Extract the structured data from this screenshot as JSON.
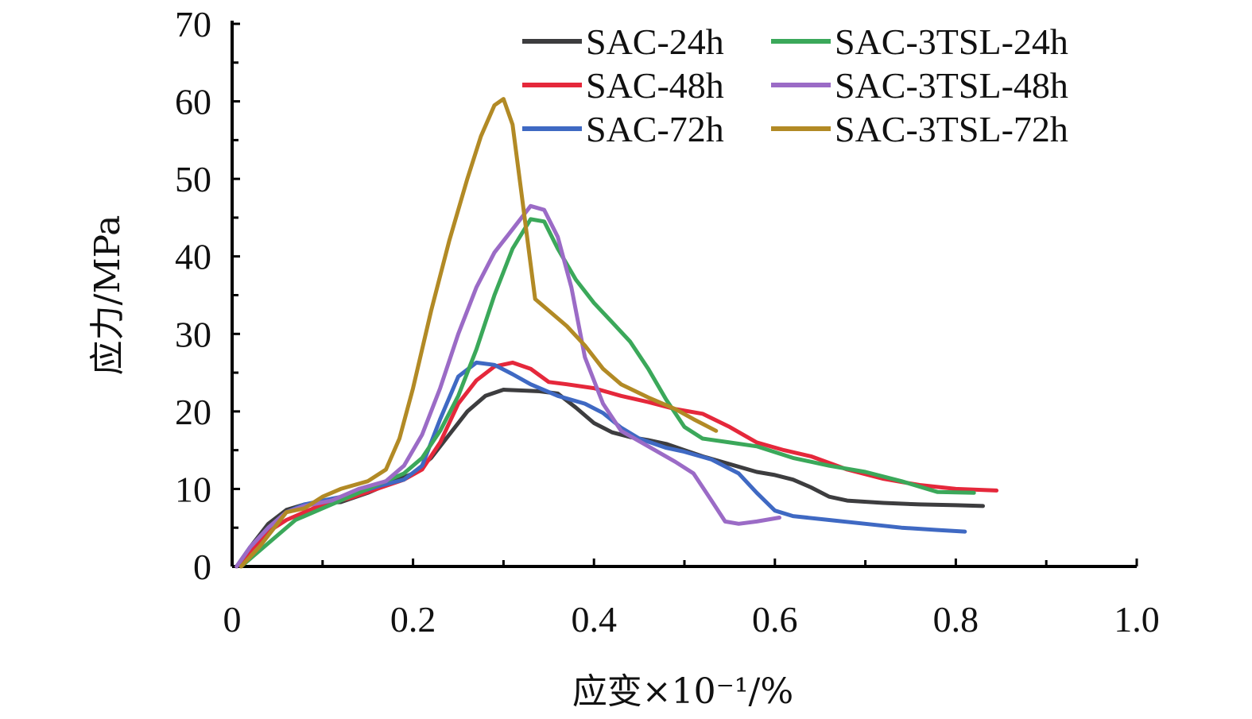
{
  "chart_data": {
    "type": "line",
    "title": "",
    "xlabel": "应变×10⁻¹/%",
    "ylabel": "应力/MPa",
    "xlim": [
      0,
      1.0
    ],
    "ylim": [
      0,
      70
    ],
    "x_ticks": [
      "0",
      "0.2",
      "0.4",
      "0.6",
      "0.8",
      "1.0"
    ],
    "y_ticks": [
      "0",
      "10",
      "20",
      "30",
      "40",
      "50",
      "60",
      "70"
    ],
    "grid": false,
    "legend_position": "top-right",
    "series": [
      {
        "name": "SAC-24h",
        "color": "#3d3d3f",
        "points": [
          [
            0.005,
            0
          ],
          [
            0.02,
            2.5
          ],
          [
            0.04,
            5.5
          ],
          [
            0.06,
            7.3
          ],
          [
            0.08,
            8.0
          ],
          [
            0.1,
            8.2
          ],
          [
            0.12,
            8.3
          ],
          [
            0.15,
            9.5
          ],
          [
            0.18,
            11.0
          ],
          [
            0.2,
            12.0
          ],
          [
            0.22,
            14.0
          ],
          [
            0.24,
            17.0
          ],
          [
            0.26,
            20.0
          ],
          [
            0.28,
            22.0
          ],
          [
            0.3,
            22.8
          ],
          [
            0.32,
            22.7
          ],
          [
            0.34,
            22.6
          ],
          [
            0.36,
            22.3
          ],
          [
            0.38,
            20.5
          ],
          [
            0.4,
            18.5
          ],
          [
            0.42,
            17.3
          ],
          [
            0.44,
            16.7
          ],
          [
            0.46,
            16.3
          ],
          [
            0.48,
            15.8
          ],
          [
            0.5,
            15.0
          ],
          [
            0.52,
            14.2
          ],
          [
            0.55,
            13.2
          ],
          [
            0.58,
            12.2
          ],
          [
            0.6,
            11.8
          ],
          [
            0.62,
            11.2
          ],
          [
            0.64,
            10.2
          ],
          [
            0.66,
            9.0
          ],
          [
            0.68,
            8.5
          ],
          [
            0.72,
            8.2
          ],
          [
            0.76,
            8.0
          ],
          [
            0.8,
            7.9
          ],
          [
            0.83,
            7.8
          ]
        ]
      },
      {
        "name": "SAC-48h",
        "color": "#e5283b",
        "points": [
          [
            0.005,
            0
          ],
          [
            0.02,
            2.0
          ],
          [
            0.04,
            4.5
          ],
          [
            0.06,
            6.0
          ],
          [
            0.08,
            7.0
          ],
          [
            0.1,
            8.0
          ],
          [
            0.13,
            8.8
          ],
          [
            0.16,
            10.0
          ],
          [
            0.19,
            11.2
          ],
          [
            0.21,
            12.5
          ],
          [
            0.23,
            16.0
          ],
          [
            0.25,
            21.0
          ],
          [
            0.27,
            24.0
          ],
          [
            0.29,
            25.8
          ],
          [
            0.31,
            26.3
          ],
          [
            0.33,
            25.5
          ],
          [
            0.35,
            23.8
          ],
          [
            0.37,
            23.5
          ],
          [
            0.4,
            23.0
          ],
          [
            0.43,
            22.0
          ],
          [
            0.46,
            21.2
          ],
          [
            0.49,
            20.3
          ],
          [
            0.52,
            19.7
          ],
          [
            0.55,
            18.0
          ],
          [
            0.58,
            16.0
          ],
          [
            0.61,
            15.0
          ],
          [
            0.64,
            14.2
          ],
          [
            0.68,
            12.5
          ],
          [
            0.72,
            11.3
          ],
          [
            0.76,
            10.5
          ],
          [
            0.8,
            10.0
          ],
          [
            0.845,
            9.8
          ]
        ]
      },
      {
        "name": "SAC-72h",
        "color": "#3f69c3",
        "points": [
          [
            0.005,
            0
          ],
          [
            0.02,
            2.5
          ],
          [
            0.04,
            5.0
          ],
          [
            0.06,
            7.0
          ],
          [
            0.08,
            8.0
          ],
          [
            0.1,
            8.5
          ],
          [
            0.13,
            9.2
          ],
          [
            0.16,
            10.3
          ],
          [
            0.19,
            11.2
          ],
          [
            0.21,
            13.0
          ],
          [
            0.23,
            19.0
          ],
          [
            0.25,
            24.5
          ],
          [
            0.27,
            26.3
          ],
          [
            0.29,
            26.0
          ],
          [
            0.31,
            24.8
          ],
          [
            0.33,
            23.5
          ],
          [
            0.36,
            22.0
          ],
          [
            0.39,
            21.0
          ],
          [
            0.41,
            19.8
          ],
          [
            0.43,
            17.9
          ],
          [
            0.45,
            16.5
          ],
          [
            0.48,
            15.3
          ],
          [
            0.5,
            14.8
          ],
          [
            0.53,
            13.8
          ],
          [
            0.56,
            12.0
          ],
          [
            0.58,
            9.5
          ],
          [
            0.6,
            7.2
          ],
          [
            0.62,
            6.5
          ],
          [
            0.66,
            6.0
          ],
          [
            0.7,
            5.5
          ],
          [
            0.74,
            5.0
          ],
          [
            0.78,
            4.7
          ],
          [
            0.81,
            4.5
          ]
        ]
      },
      {
        "name": "SAC-3TSL-24h",
        "color": "#3ba85a",
        "points": [
          [
            0.01,
            0
          ],
          [
            0.03,
            2.0
          ],
          [
            0.05,
            4.0
          ],
          [
            0.07,
            6.0
          ],
          [
            0.1,
            7.5
          ],
          [
            0.13,
            9.0
          ],
          [
            0.16,
            10.5
          ],
          [
            0.19,
            12.0
          ],
          [
            0.21,
            14.0
          ],
          [
            0.23,
            17.5
          ],
          [
            0.25,
            22.0
          ],
          [
            0.27,
            28.0
          ],
          [
            0.29,
            35.0
          ],
          [
            0.31,
            41.0
          ],
          [
            0.33,
            44.8
          ],
          [
            0.345,
            44.5
          ],
          [
            0.36,
            41.0
          ],
          [
            0.38,
            37.0
          ],
          [
            0.4,
            34.0
          ],
          [
            0.42,
            31.5
          ],
          [
            0.44,
            29.0
          ],
          [
            0.46,
            25.5
          ],
          [
            0.48,
            21.5
          ],
          [
            0.5,
            18.0
          ],
          [
            0.52,
            16.5
          ],
          [
            0.55,
            16.0
          ],
          [
            0.58,
            15.5
          ],
          [
            0.62,
            14.0
          ],
          [
            0.66,
            13.0
          ],
          [
            0.7,
            12.2
          ],
          [
            0.74,
            11.0
          ],
          [
            0.78,
            9.6
          ],
          [
            0.82,
            9.5
          ]
        ]
      },
      {
        "name": "SAC-3TSL-48h",
        "color": "#9b6bc6",
        "points": [
          [
            0.005,
            0
          ],
          [
            0.02,
            2.5
          ],
          [
            0.04,
            5.0
          ],
          [
            0.06,
            7.0
          ],
          [
            0.08,
            7.8
          ],
          [
            0.11,
            8.5
          ],
          [
            0.14,
            10.0
          ],
          [
            0.17,
            11.0
          ],
          [
            0.19,
            13.0
          ],
          [
            0.21,
            17.0
          ],
          [
            0.23,
            23.0
          ],
          [
            0.25,
            30.0
          ],
          [
            0.27,
            36.0
          ],
          [
            0.29,
            40.5
          ],
          [
            0.31,
            43.5
          ],
          [
            0.33,
            46.5
          ],
          [
            0.345,
            46.0
          ],
          [
            0.36,
            42.5
          ],
          [
            0.375,
            36.0
          ],
          [
            0.39,
            27.0
          ],
          [
            0.41,
            21.0
          ],
          [
            0.43,
            17.5
          ],
          [
            0.46,
            15.5
          ],
          [
            0.49,
            13.5
          ],
          [
            0.51,
            12.0
          ],
          [
            0.53,
            8.5
          ],
          [
            0.545,
            5.8
          ],
          [
            0.56,
            5.5
          ],
          [
            0.58,
            5.8
          ],
          [
            0.605,
            6.3
          ]
        ]
      },
      {
        "name": "SAC-3TSL-72h",
        "color": "#b28a25",
        "points": [
          [
            0.01,
            0
          ],
          [
            0.03,
            2.5
          ],
          [
            0.05,
            5.5
          ],
          [
            0.06,
            7.0
          ],
          [
            0.08,
            7.5
          ],
          [
            0.1,
            9.0
          ],
          [
            0.12,
            10.0
          ],
          [
            0.15,
            11.0
          ],
          [
            0.17,
            12.5
          ],
          [
            0.185,
            16.5
          ],
          [
            0.2,
            23.0
          ],
          [
            0.22,
            33.0
          ],
          [
            0.24,
            42.0
          ],
          [
            0.26,
            50.0
          ],
          [
            0.275,
            55.5
          ],
          [
            0.29,
            59.5
          ],
          [
            0.3,
            60.3
          ],
          [
            0.31,
            57.0
          ],
          [
            0.32,
            48.0
          ],
          [
            0.33,
            39.0
          ],
          [
            0.335,
            34.5
          ],
          [
            0.35,
            33.0
          ],
          [
            0.37,
            31.0
          ],
          [
            0.39,
            28.5
          ],
          [
            0.41,
            25.5
          ],
          [
            0.43,
            23.5
          ],
          [
            0.46,
            21.8
          ],
          [
            0.49,
            20.3
          ],
          [
            0.51,
            19.0
          ],
          [
            0.535,
            17.5
          ]
        ]
      }
    ]
  }
}
